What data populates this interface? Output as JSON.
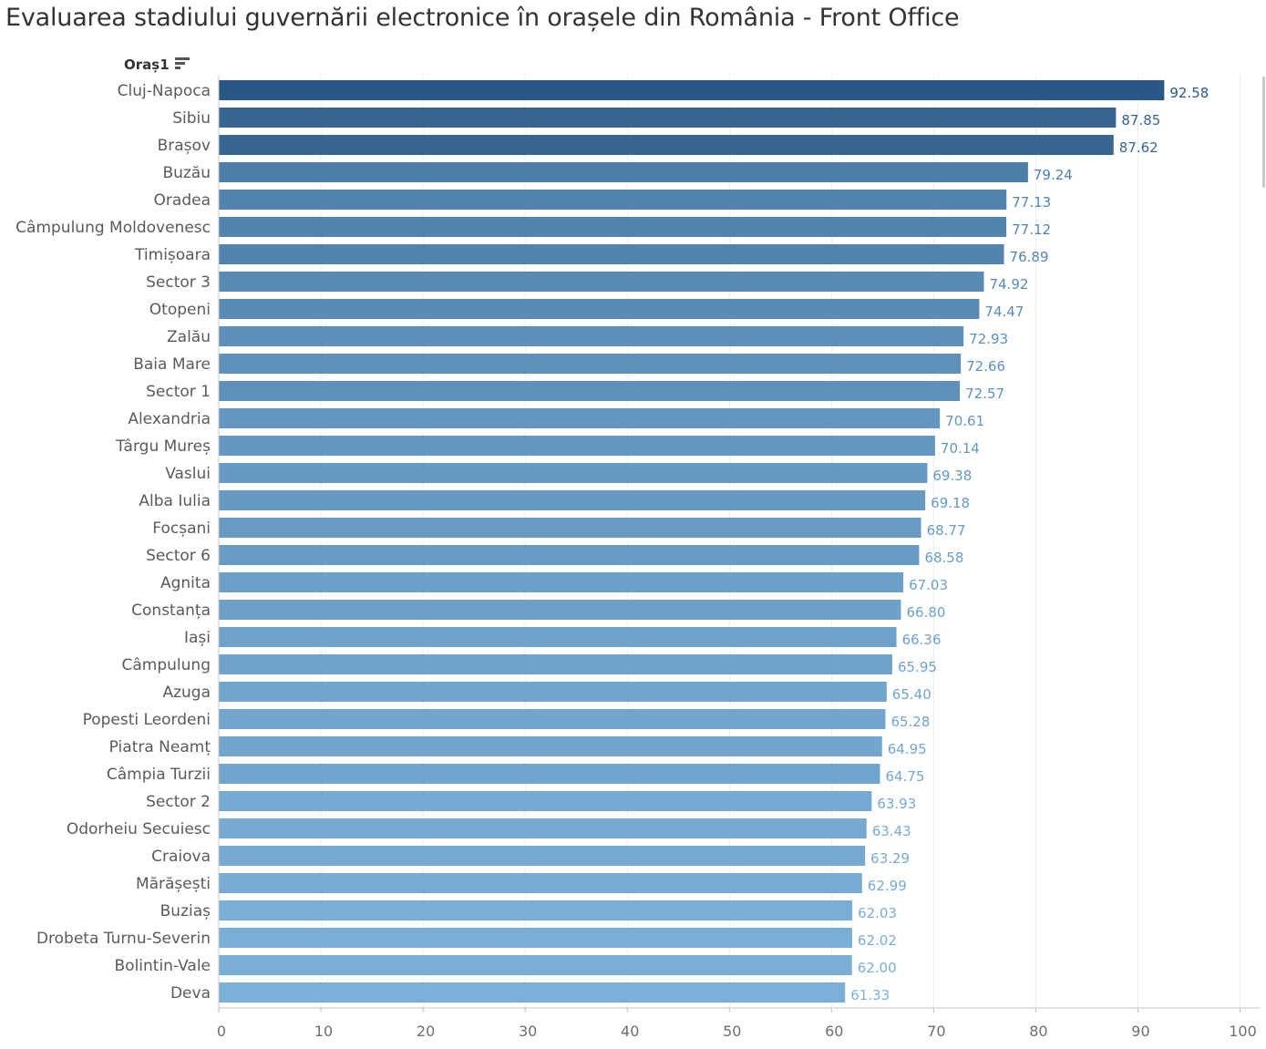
{
  "title": "Evaluarea stadiului guvernării electronice în orașele din România - Front Office",
  "field_header": "Oraș1",
  "sort_icon": "sort-descending-icon",
  "chart_data": {
    "type": "bar",
    "orientation": "horizontal",
    "categories": [
      "Cluj-Napoca",
      "Sibiu",
      "Brașov",
      "Buzău",
      "Oradea",
      "Câmpulung Moldovenesc",
      "Timișoara",
      "Sector 3",
      "Otopeni",
      "Zalău",
      "Baia Mare",
      "Sector 1",
      "Alexandria",
      "Târgu Mureș",
      "Vaslui",
      "Alba Iulia",
      "Focșani",
      "Sector 6",
      "Agnita",
      "Constanța",
      "Iași",
      "Câmpulung",
      "Azuga",
      "Popesti Leordeni",
      "Piatra Neamț",
      "Câmpia Turzii",
      "Sector 2",
      "Odorheiu Secuiesc",
      "Craiova",
      "Mărășești",
      "Buziaș",
      "Drobeta Turnu-Severin",
      "Bolintin-Vale",
      "Deva"
    ],
    "values": [
      92.58,
      87.85,
      87.62,
      79.24,
      77.13,
      77.12,
      76.89,
      74.92,
      74.47,
      72.93,
      72.66,
      72.57,
      70.61,
      70.14,
      69.38,
      69.18,
      68.77,
      68.58,
      67.03,
      66.8,
      66.36,
      65.95,
      65.4,
      65.28,
      64.95,
      64.75,
      63.93,
      63.43,
      63.29,
      62.99,
      62.03,
      62.02,
      62.0,
      61.33
    ],
    "value_labels": [
      "92.58",
      "87.85",
      "87.62",
      "79.24",
      "77.13",
      "77.12",
      "76.89",
      "74.92",
      "74.47",
      "72.93",
      "72.66",
      "72.57",
      "70.61",
      "70.14",
      "69.38",
      "69.18",
      "68.77",
      "68.58",
      "67.03",
      "66.80",
      "66.36",
      "65.95",
      "65.40",
      "65.28",
      "64.95",
      "64.75",
      "63.93",
      "63.43",
      "63.29",
      "62.99",
      "62.03",
      "62.02",
      "62.00",
      "61.33"
    ],
    "x_ticks": [
      "0",
      "10",
      "20",
      "30",
      "40",
      "50",
      "60",
      "70",
      "80",
      "90",
      "100"
    ],
    "xlim": [
      0,
      100
    ],
    "grid": true,
    "color_scale": {
      "low": "#7bb0d8",
      "high": "#2a5886"
    }
  }
}
